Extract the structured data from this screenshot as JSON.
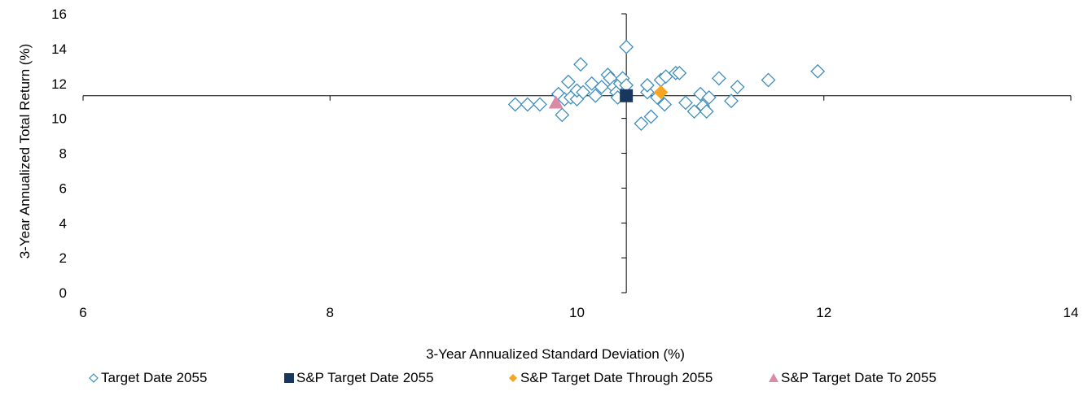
{
  "chart_data": {
    "type": "scatter",
    "xlabel": "3-Year Annualized Standard Deviation (%)",
    "ylabel": "3-Year Annualized Total Return (%)",
    "xlim": [
      6,
      14
    ],
    "ylim": [
      0,
      16
    ],
    "x_ticks": [
      6,
      8,
      10,
      12,
      14
    ],
    "y_ticks": [
      0,
      2,
      4,
      6,
      8,
      10,
      12,
      14,
      16
    ],
    "axis_crossing": {
      "x": 10.4,
      "y": 11.3
    },
    "grid": false,
    "legend_position": "bottom",
    "series": [
      {
        "name": "Target Date 2055",
        "marker": "diamond-open",
        "color": "#3E8EBE",
        "points": [
          [
            9.5,
            10.8
          ],
          [
            9.6,
            10.8
          ],
          [
            9.7,
            10.8
          ],
          [
            9.85,
            11.4
          ],
          [
            9.88,
            10.2
          ],
          [
            9.9,
            11.1
          ],
          [
            9.93,
            12.1
          ],
          [
            9.95,
            11.2
          ],
          [
            10.0,
            11.1
          ],
          [
            10.0,
            11.6
          ],
          [
            10.03,
            13.1
          ],
          [
            10.05,
            11.5
          ],
          [
            10.12,
            12.0
          ],
          [
            10.15,
            11.3
          ],
          [
            10.2,
            11.8
          ],
          [
            10.25,
            12.5
          ],
          [
            10.27,
            12.3
          ],
          [
            10.3,
            11.8
          ],
          [
            10.32,
            11.5
          ],
          [
            10.33,
            11.2
          ],
          [
            10.35,
            12.0
          ],
          [
            10.37,
            12.3
          ],
          [
            10.4,
            11.9
          ],
          [
            10.4,
            14.1
          ],
          [
            10.52,
            9.7
          ],
          [
            10.57,
            11.5
          ],
          [
            10.57,
            11.9
          ],
          [
            10.6,
            10.1
          ],
          [
            10.65,
            11.2
          ],
          [
            10.68,
            12.2
          ],
          [
            10.71,
            10.8
          ],
          [
            10.72,
            12.4
          ],
          [
            10.8,
            12.6
          ],
          [
            10.83,
            12.6
          ],
          [
            10.88,
            10.9
          ],
          [
            10.95,
            10.4
          ],
          [
            11.0,
            11.4
          ],
          [
            11.02,
            10.7
          ],
          [
            11.05,
            10.4
          ],
          [
            11.07,
            11.2
          ],
          [
            11.15,
            12.3
          ],
          [
            11.25,
            11.0
          ],
          [
            11.3,
            11.8
          ],
          [
            11.55,
            12.2
          ],
          [
            11.95,
            12.7
          ]
        ]
      },
      {
        "name": "S&P Target Date 2055",
        "marker": "square",
        "color": "#17375E",
        "points": [
          [
            10.4,
            11.3
          ]
        ]
      },
      {
        "name": "S&P Target Date Through 2055",
        "marker": "diamond",
        "color": "#F5A623",
        "points": [
          [
            10.68,
            11.5
          ]
        ]
      },
      {
        "name": "S&P Target Date To 2055",
        "marker": "triangle",
        "color": "#D98AA6",
        "points": [
          [
            9.83,
            10.9
          ]
        ]
      }
    ]
  }
}
